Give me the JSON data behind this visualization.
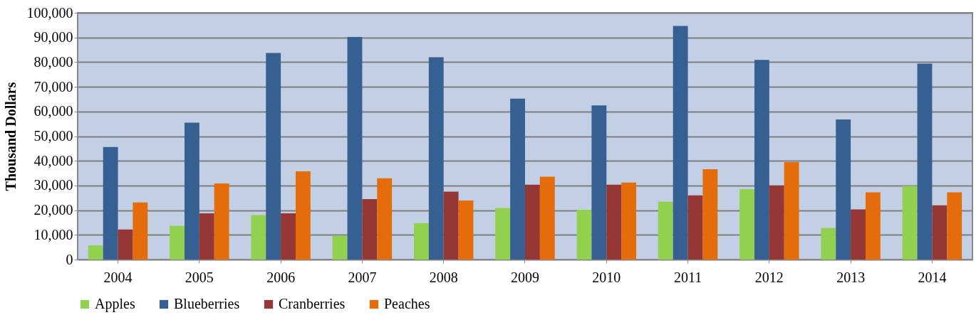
{
  "chart_data": {
    "type": "bar",
    "ylabel": "Thousand Dollars",
    "categories": [
      "2004",
      "2005",
      "2006",
      "2007",
      "2008",
      "2009",
      "2010",
      "2011",
      "2012",
      "2013",
      "2014"
    ],
    "series": [
      {
        "name": "Apples",
        "color": "#92d050",
        "values": [
          5700,
          13700,
          18000,
          9700,
          14800,
          20900,
          20200,
          23400,
          28500,
          12800,
          29800
        ]
      },
      {
        "name": "Blueberries",
        "color": "#366092",
        "values": [
          45600,
          55500,
          83700,
          90200,
          82000,
          65200,
          62500,
          94700,
          80900,
          56800,
          79400
        ]
      },
      {
        "name": "Cranberries",
        "color": "#953735",
        "values": [
          12200,
          18700,
          18700,
          24500,
          27500,
          30300,
          30300,
          26000,
          30000,
          20300,
          22000
        ]
      },
      {
        "name": "Peaches",
        "color": "#e46c0a",
        "values": [
          23100,
          30800,
          35700,
          32900,
          23900,
          33600,
          31200,
          36600,
          39500,
          27200,
          27200
        ]
      }
    ],
    "ylim": [
      0,
      100000
    ],
    "yticks": [
      0,
      {
        "value": 10000,
        "label": "10,000"
      },
      {
        "value": 20000,
        "label": "20,000"
      },
      {
        "value": 30000,
        "label": "30,000"
      },
      {
        "value": 40000,
        "label": "40,000"
      },
      {
        "value": 50000,
        "label": "50,000"
      },
      {
        "value": 60000,
        "label": "60,000"
      },
      {
        "value": 70000,
        "label": "70,000"
      },
      {
        "value": 80000,
        "label": "80,000"
      },
      {
        "value": 90000,
        "label": "90,000"
      },
      {
        "value": 100000,
        "label": "100,000"
      }
    ],
    "grid": "y",
    "legend": "bottom"
  }
}
